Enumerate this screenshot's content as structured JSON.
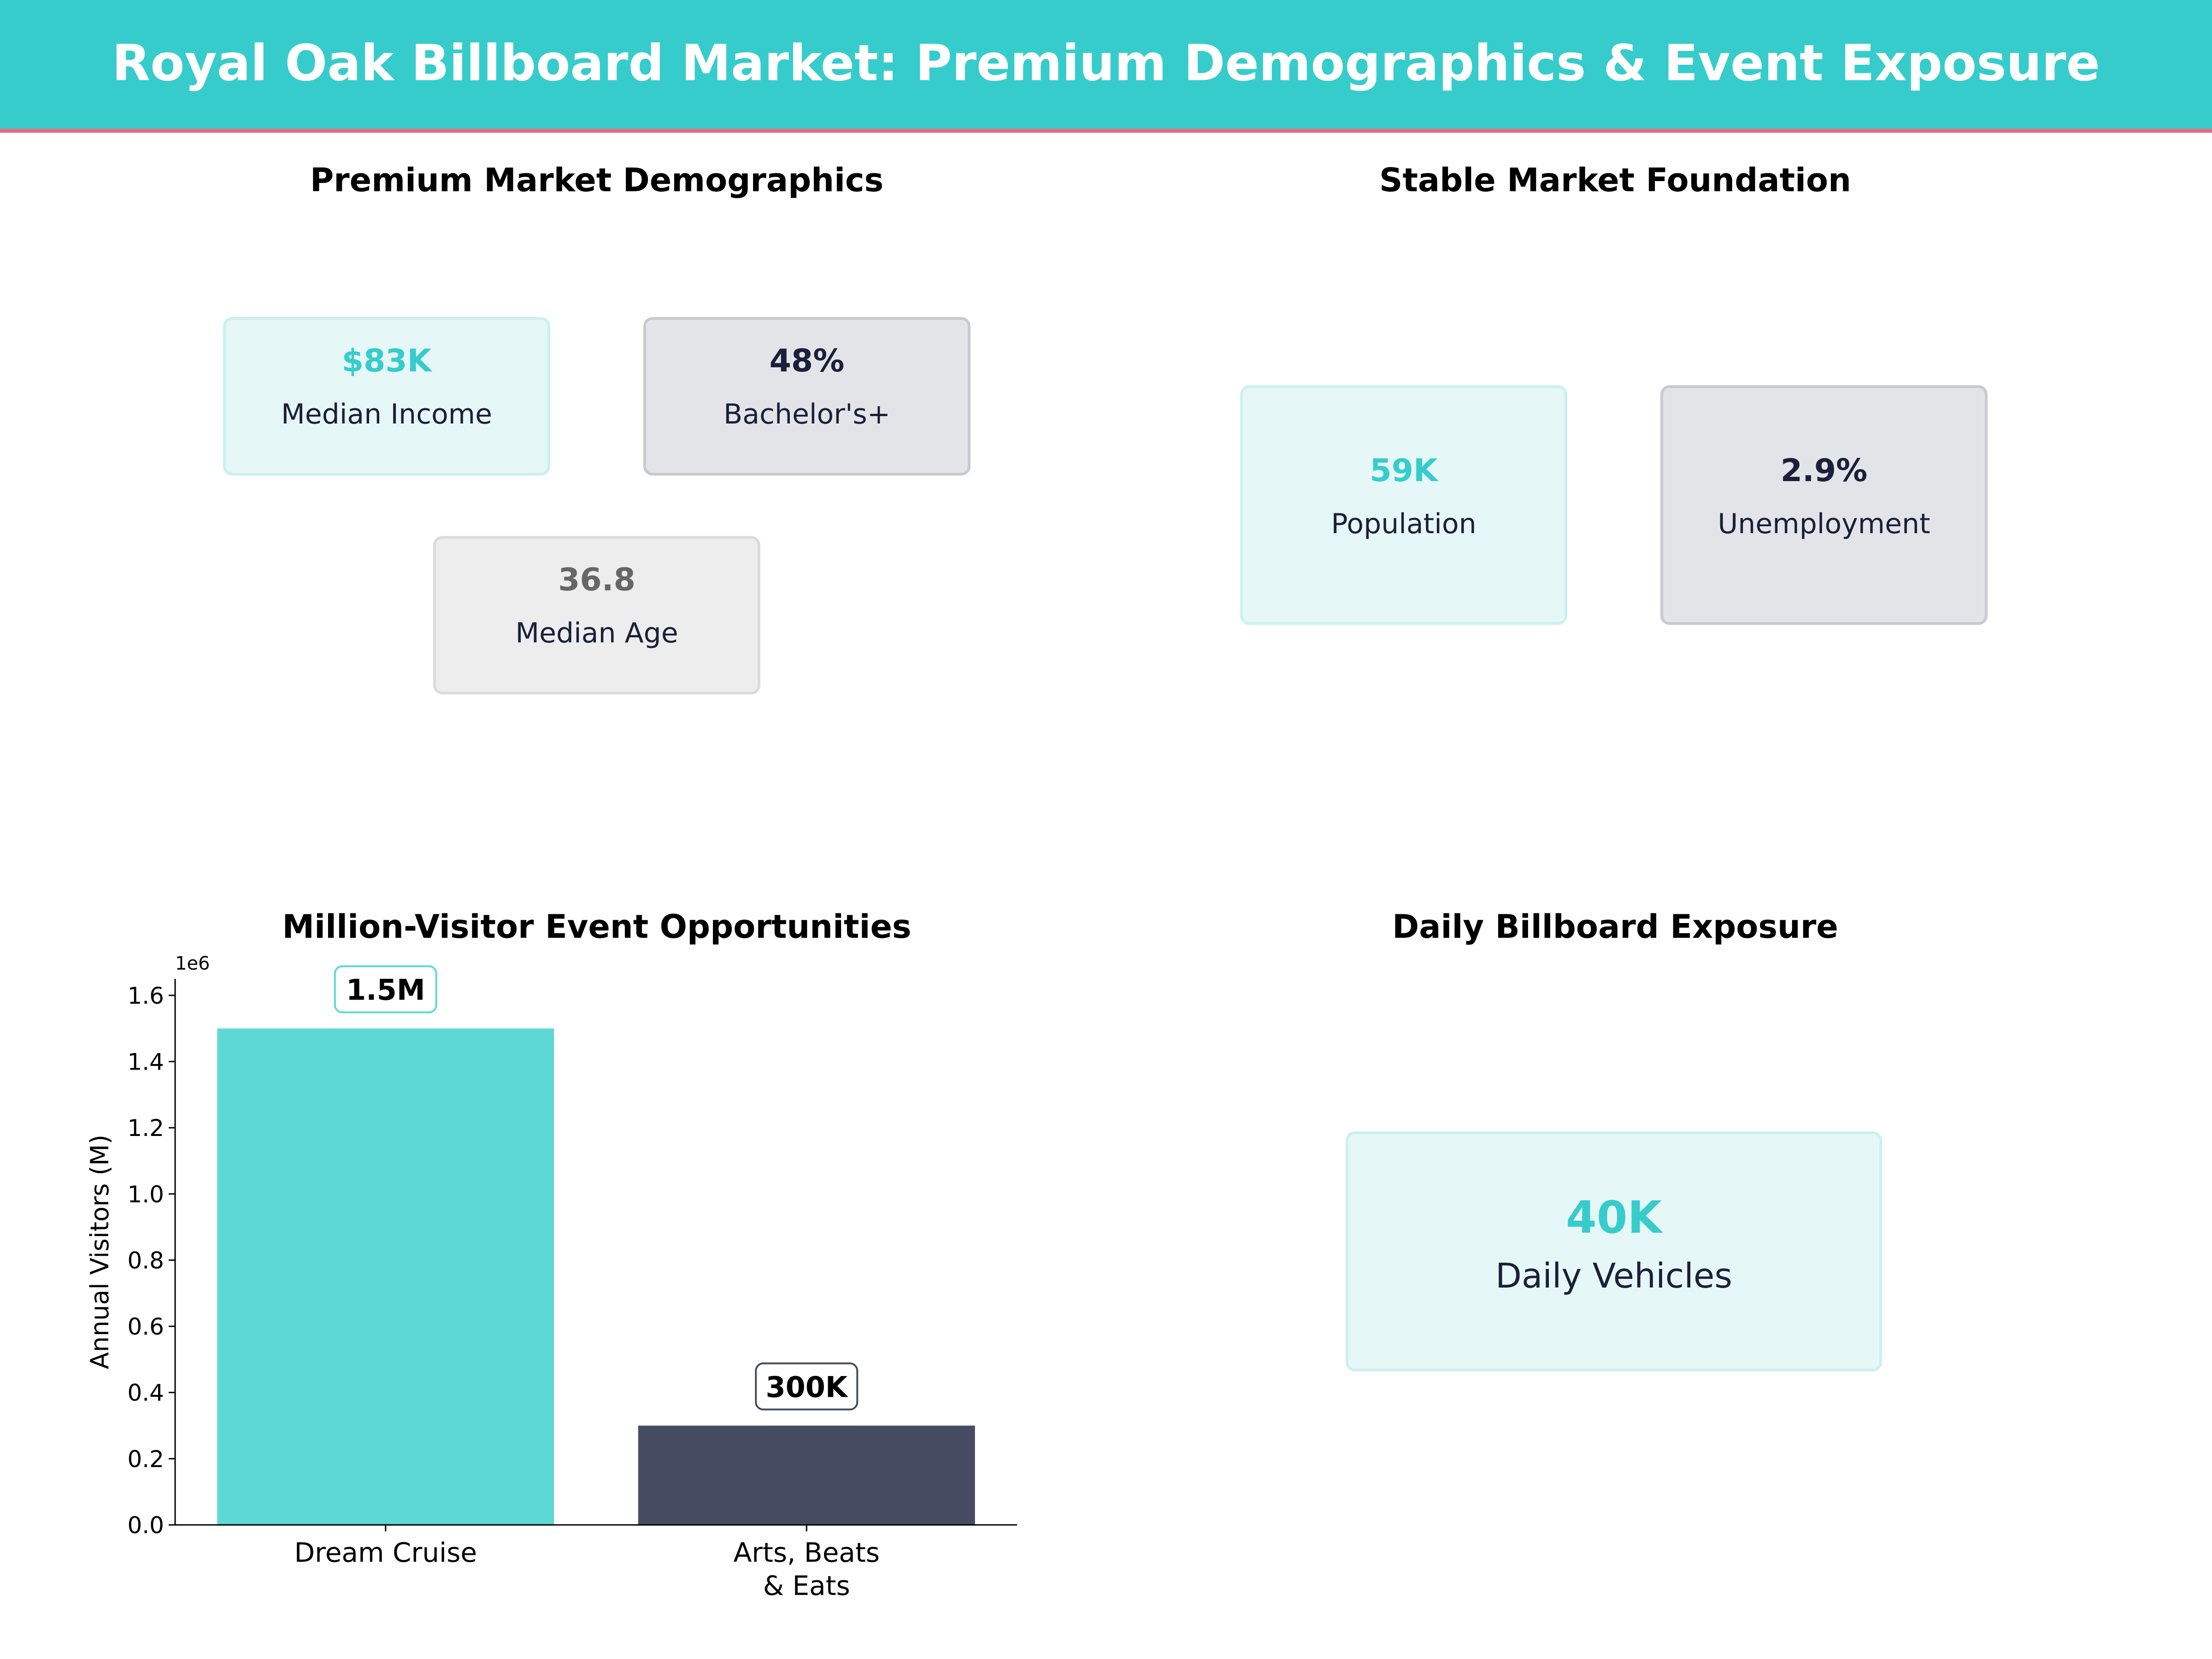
{
  "header": {
    "title": "Royal Oak Billboard Market: Premium Demographics & Event Exposure"
  },
  "colors": {
    "teal": "#36cccc",
    "accent_line": "#f06478",
    "dark": "#1a1f3a",
    "gray": "#666666",
    "bar_teal": "#5dd8d4",
    "bar_dark": "#464b61"
  },
  "demographics": {
    "title": "Premium Market Demographics",
    "cards": [
      {
        "value": "$83K",
        "label": "Median Income"
      },
      {
        "value": "48%",
        "label": "Bachelor's+"
      },
      {
        "value": "36.8",
        "label": "Median Age"
      }
    ]
  },
  "foundation": {
    "title": "Stable Market Foundation",
    "cards": [
      {
        "value": "59K",
        "label": "Population"
      },
      {
        "value": "2.9%",
        "label": "Unemployment"
      }
    ]
  },
  "exposure": {
    "title": "Daily Billboard Exposure",
    "card": {
      "value": "40K",
      "label": "Daily Vehicles"
    }
  },
  "chart_data": {
    "type": "bar",
    "title": "Million-Visitor Event Opportunities",
    "categories": [
      "Dream Cruise",
      "Arts, Beats\n& Eats"
    ],
    "values": [
      1500000,
      300000
    ],
    "data_labels": [
      "1.5M",
      "300K"
    ],
    "colors": [
      "#5dd8d4",
      "#464b61"
    ],
    "ylabel": "Annual Visitors (M)",
    "offset_label": "1e6",
    "ylim": [
      0,
      1650000
    ],
    "yticks": [
      0,
      200000,
      400000,
      600000,
      800000,
      1000000,
      1200000,
      1400000,
      1600000
    ],
    "ytick_labels": [
      "0.0",
      "0.2",
      "0.4",
      "0.6",
      "0.8",
      "1.0",
      "1.2",
      "1.4",
      "1.6"
    ],
    "grid": false
  }
}
